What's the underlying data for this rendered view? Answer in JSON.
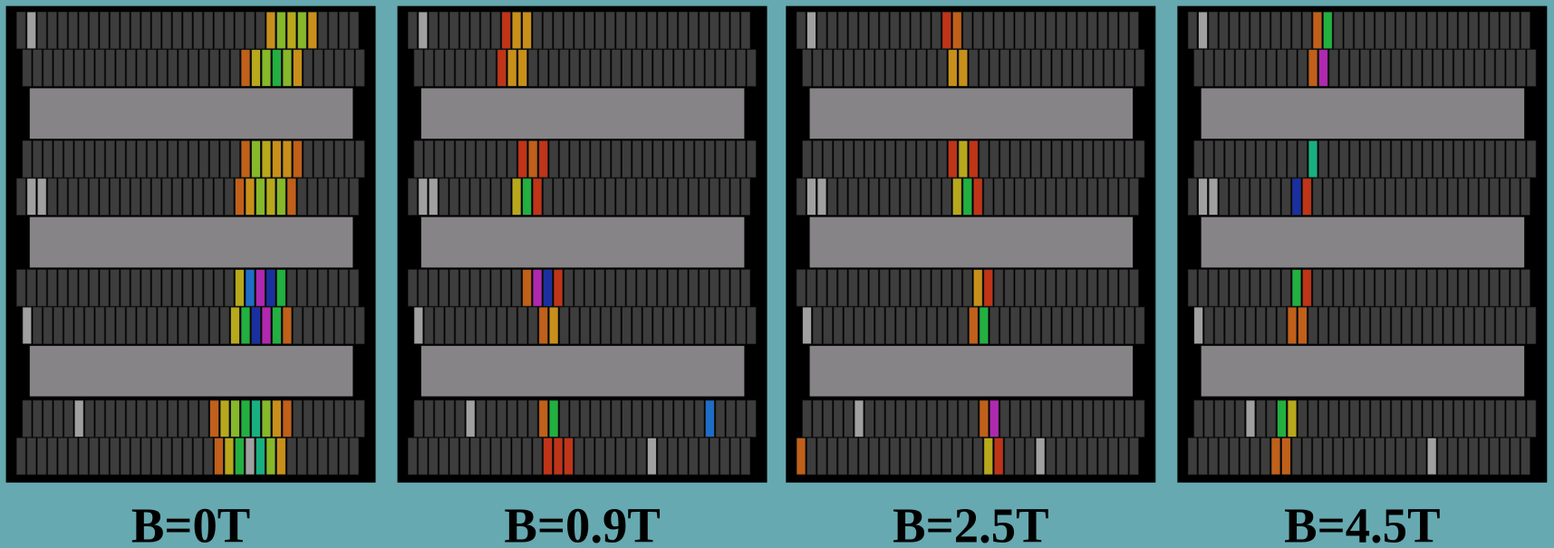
{
  "panels": [
    {
      "label": "B=0T"
    },
    {
      "label": "B=0.9T"
    },
    {
      "label": "B=2.5T"
    },
    {
      "label": "B=4.5T"
    }
  ]
}
